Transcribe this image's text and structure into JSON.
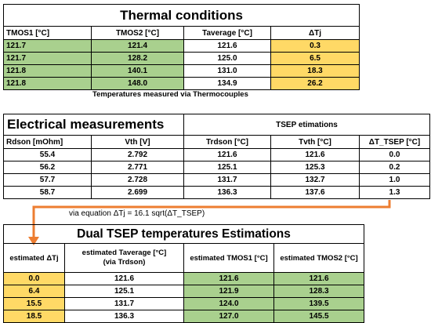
{
  "thermal": {
    "title": "Thermal conditions",
    "headers": [
      "TMOS1 [°C]",
      "TMOS2 [°C]",
      "Taverage [°C]",
      "ΔTj"
    ],
    "rows": [
      [
        "121.7",
        "121.4",
        "121.6",
        "0.3"
      ],
      [
        "121.7",
        "128.2",
        "125.0",
        "6.5"
      ],
      [
        "121.8",
        "140.1",
        "131.0",
        "18.3"
      ],
      [
        "121.8",
        "148.0",
        "134.9",
        "26.2"
      ]
    ],
    "note": "Temperatures measured via Thermocouples"
  },
  "electrical": {
    "title": "Electrical measurements",
    "tsep_title": "TSEP etimations",
    "headers": [
      "Rdson [mOhm]",
      "Vth [V]",
      "Trdson [°C]",
      "Tvth [°C]",
      "ΔT_TSEP [°C]"
    ],
    "rows": [
      [
        "55.4",
        "2.792",
        "121.6",
        "121.6",
        "0.0"
      ],
      [
        "56.2",
        "2.771",
        "125.1",
        "125.3",
        "0.2"
      ],
      [
        "57.7",
        "2.728",
        "131.7",
        "132.7",
        "1.0"
      ],
      [
        "58.7",
        "2.699",
        "136.3",
        "137.6",
        "1.3"
      ]
    ]
  },
  "equation": "via equation  ΔTj = 16.1 sqrt(ΔT_TSEP)",
  "dual": {
    "title": "Dual TSEP temperatures Estimations",
    "headers": [
      "estimated ΔTj",
      "estimated Taverage [°C]",
      "estimated TMOS1 [°C]",
      "estimated TMOS2 [°C]"
    ],
    "subheader": "(via Trdson)",
    "rows": [
      [
        "0.0",
        "121.6",
        "121.6",
        "121.6"
      ],
      [
        "6.4",
        "125.1",
        "121.9",
        "128.3"
      ],
      [
        "15.5",
        "131.7",
        "124.0",
        "139.5"
      ],
      [
        "18.5",
        "136.3",
        "127.0",
        "145.5"
      ]
    ]
  },
  "colors": {
    "green": "#a9d08e",
    "orange": "#ffd966",
    "arrow": "#ed7d31"
  }
}
